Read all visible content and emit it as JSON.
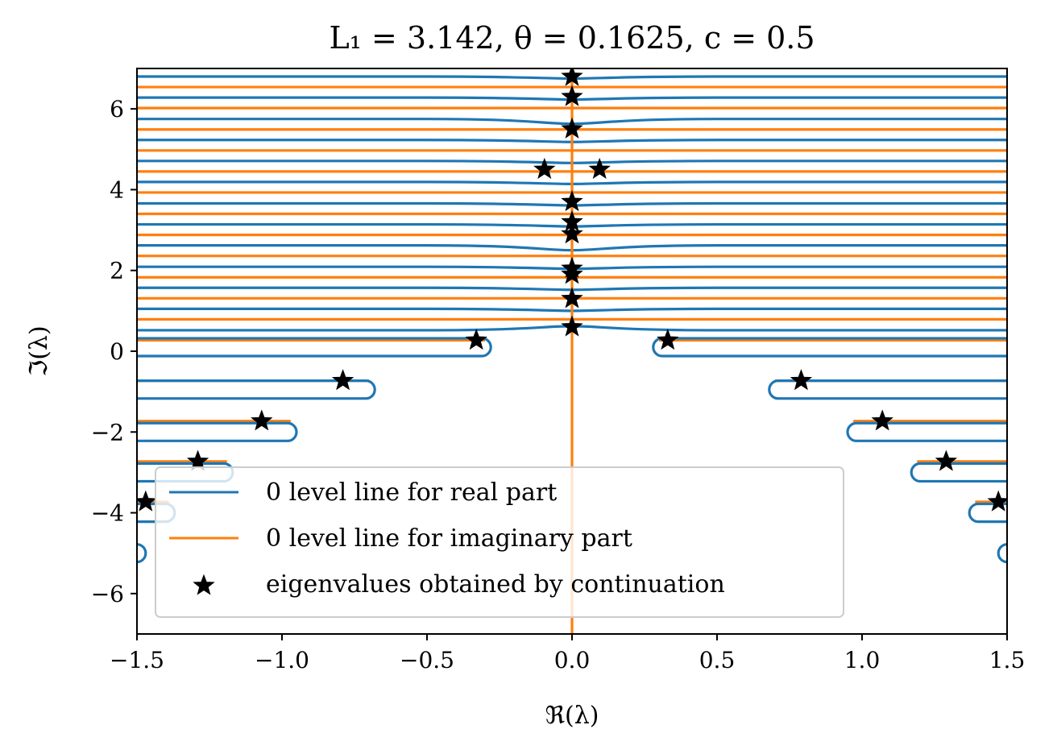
{
  "chart_data": {
    "type": "line",
    "title": "L₁ = 3.142, θ = 0.1625, c = 0.5",
    "xlabel": "ℜ(λ)",
    "ylabel": "ℑ(λ)",
    "xlim": [
      -1.5,
      1.5
    ],
    "ylim": [
      -7,
      7
    ],
    "x_ticks": [
      -1.5,
      -1.0,
      -0.5,
      0.0,
      0.5,
      1.0,
      1.5
    ],
    "x_tick_labels": [
      "−1.5",
      "−1.0",
      "−0.5",
      "0.0",
      "0.5",
      "1.0",
      "1.5"
    ],
    "y_ticks": [
      -6,
      -4,
      -2,
      0,
      2,
      4,
      6
    ],
    "y_tick_labels": [
      "−6",
      "−4",
      "−2",
      "0",
      "2",
      "4",
      "6"
    ],
    "grid": false,
    "legend_position": "lower-center",
    "colors": {
      "real": "#1f77b4",
      "imag": "#ff7f0e",
      "eigen": "#000000"
    },
    "series": [
      {
        "name": "0 level line for real part",
        "style": "line",
        "color": "#1f77b4",
        "horizontal_lines_y": [
          6.8,
          6.28,
          5.75,
          5.23,
          4.71,
          4.19,
          3.66,
          3.14,
          2.62,
          2.09,
          1.57,
          1.05,
          0.52
        ],
        "loops": [
          {
            "y": 0.1,
            "x_min_abs": 0.28,
            "x_max_abs": 1.5
          },
          {
            "y": -0.95,
            "x_min_abs": 0.68,
            "x_max_abs": 1.5
          },
          {
            "y": -2.0,
            "x_min_abs": 0.95,
            "x_max_abs": 1.5
          },
          {
            "y": -3.0,
            "x_min_abs": 1.17,
            "x_max_abs": 1.5
          },
          {
            "y": -4.0,
            "x_min_abs": 1.37,
            "x_max_abs": 1.5
          },
          {
            "y": -5.0,
            "x_min_abs": 1.47,
            "x_max_abs": 1.5
          }
        ]
      },
      {
        "name": "0 level line for imaginary part",
        "style": "line",
        "color": "#ff7f0e",
        "vertical_line_x": 0.0,
        "horizontal_lines_y": [
          6.54,
          6.02,
          5.49,
          4.97,
          4.45,
          3.93,
          3.4,
          2.88,
          2.36,
          1.83,
          1.31,
          0.79
        ],
        "lower_lines_y": [
          0.27,
          -0.73,
          -1.73,
          -2.73,
          -3.73
        ]
      },
      {
        "name": "eigenvalues obtained by continuation",
        "style": "scatter",
        "marker": "star",
        "color": "#000000",
        "points": [
          [
            0.0,
            6.8
          ],
          [
            0.0,
            6.3
          ],
          [
            0.0,
            5.5
          ],
          [
            -0.095,
            4.5
          ],
          [
            0.095,
            4.5
          ],
          [
            0.0,
            3.7
          ],
          [
            0.0,
            3.2
          ],
          [
            0.0,
            2.9
          ],
          [
            0.0,
            2.05
          ],
          [
            0.0,
            1.9
          ],
          [
            0.0,
            1.3
          ],
          [
            0.0,
            0.6
          ],
          [
            -0.33,
            0.27
          ],
          [
            0.33,
            0.27
          ],
          [
            -0.79,
            -0.73
          ],
          [
            0.79,
            -0.73
          ],
          [
            -1.07,
            -1.73
          ],
          [
            1.07,
            -1.73
          ],
          [
            -1.29,
            -2.73
          ],
          [
            1.29,
            -2.73
          ],
          [
            -1.47,
            -3.73
          ],
          [
            1.47,
            -3.73
          ]
        ]
      }
    ]
  }
}
